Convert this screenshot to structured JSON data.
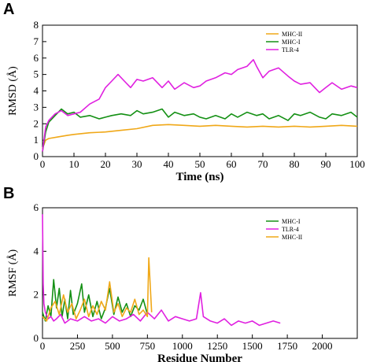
{
  "chart_data": [
    {
      "type": "line",
      "panel_label": "A",
      "xlabel": "Time (ns)",
      "ylabel": "RMSD (Å)",
      "xlim": [
        0,
        100
      ],
      "ylim": [
        0,
        8
      ],
      "xticks": [
        0,
        10,
        20,
        30,
        40,
        50,
        60,
        70,
        80,
        90,
        100
      ],
      "yticks": [
        0,
        1,
        2,
        3,
        4,
        5,
        6,
        7,
        8
      ],
      "grid": false,
      "legend_position": "top-right",
      "series": [
        {
          "name": "MHC-II",
          "color": "#f0a818",
          "x": [
            0,
            1,
            2,
            5,
            8,
            10,
            15,
            20,
            25,
            30,
            35,
            40,
            45,
            50,
            55,
            60,
            65,
            70,
            75,
            80,
            85,
            90,
            95,
            100
          ],
          "y": [
            0.5,
            1.0,
            1.1,
            1.2,
            1.3,
            1.35,
            1.45,
            1.5,
            1.6,
            1.7,
            1.9,
            1.95,
            1.9,
            1.85,
            1.9,
            1.85,
            1.8,
            1.85,
            1.8,
            1.85,
            1.8,
            1.85,
            1.9,
            1.85
          ]
        },
        {
          "name": "MHC-I",
          "color": "#149014",
          "x": [
            0,
            1,
            2,
            4,
            6,
            8,
            10,
            12,
            15,
            18,
            20,
            22,
            25,
            28,
            30,
            32,
            35,
            38,
            40,
            42,
            45,
            48,
            50,
            52,
            55,
            58,
            60,
            62,
            65,
            68,
            70,
            72,
            75,
            78,
            80,
            82,
            85,
            88,
            90,
            92,
            95,
            98,
            100
          ],
          "y": [
            0.3,
            1.5,
            2.1,
            2.5,
            2.9,
            2.6,
            2.7,
            2.4,
            2.5,
            2.3,
            2.4,
            2.5,
            2.6,
            2.5,
            2.8,
            2.6,
            2.7,
            2.9,
            2.4,
            2.7,
            2.5,
            2.6,
            2.4,
            2.3,
            2.5,
            2.3,
            2.6,
            2.4,
            2.7,
            2.5,
            2.6,
            2.3,
            2.5,
            2.2,
            2.6,
            2.5,
            2.7,
            2.4,
            2.3,
            2.6,
            2.5,
            2.7,
            2.4
          ]
        },
        {
          "name": "TLR-4",
          "color": "#e020e0",
          "x": [
            0,
            1,
            2,
            4,
            6,
            8,
            10,
            12,
            15,
            18,
            20,
            22,
            24,
            26,
            28,
            30,
            32,
            35,
            38,
            40,
            42,
            45,
            48,
            50,
            52,
            55,
            58,
            60,
            62,
            65,
            67,
            68,
            70,
            72,
            75,
            78,
            80,
            82,
            85,
            88,
            90,
            92,
            95,
            98,
            100
          ],
          "y": [
            0.3,
            1.8,
            2.2,
            2.6,
            2.8,
            2.5,
            2.6,
            2.7,
            3.2,
            3.5,
            4.2,
            4.6,
            5.0,
            4.6,
            4.2,
            4.7,
            4.6,
            4.8,
            4.2,
            4.6,
            4.1,
            4.5,
            4.2,
            4.3,
            4.6,
            4.8,
            5.1,
            5.0,
            5.3,
            5.5,
            5.9,
            5.5,
            4.8,
            5.2,
            5.4,
            4.9,
            4.6,
            4.4,
            4.5,
            3.9,
            4.2,
            4.5,
            4.1,
            4.3,
            4.2
          ]
        }
      ]
    },
    {
      "type": "line",
      "panel_label": "B",
      "xlabel": "Residue Number",
      "ylabel": "RMSF (Å)",
      "xlim": [
        0,
        2250
      ],
      "ylim": [
        0,
        6
      ],
      "xticks": [
        0,
        250,
        500,
        750,
        1000,
        1250,
        1500,
        1750,
        2000
      ],
      "yticks": [
        0,
        2,
        4,
        6
      ],
      "grid": false,
      "legend_position": "top-right",
      "series": [
        {
          "name": "MHC-I",
          "color": "#149014",
          "x": [
            0,
            20,
            40,
            60,
            80,
            100,
            120,
            140,
            160,
            180,
            200,
            220,
            250,
            280,
            300,
            330,
            360,
            390,
            420,
            450,
            480,
            510,
            540,
            570,
            600,
            630,
            660,
            690,
            720,
            750
          ],
          "y": [
            1.2,
            0.8,
            1.5,
            1.0,
            2.7,
            1.4,
            2.3,
            1.0,
            1.8,
            0.9,
            2.2,
            1.1,
            1.6,
            2.5,
            1.2,
            2.0,
            1.0,
            1.7,
            0.9,
            1.4,
            2.3,
            1.1,
            1.9,
            1.2,
            1.6,
            1.0,
            1.5,
            1.3,
            1.8,
            1.1
          ]
        },
        {
          "name": "TLR-4",
          "color": "#e020e0",
          "x": [
            0,
            5,
            10,
            20,
            40,
            60,
            80,
            100,
            130,
            160,
            200,
            250,
            300,
            350,
            400,
            450,
            500,
            550,
            600,
            650,
            700,
            750,
            800,
            850,
            900,
            950,
            1000,
            1050,
            1100,
            1130,
            1150,
            1200,
            1250,
            1300,
            1350,
            1400,
            1450,
            1500,
            1550,
            1600,
            1650,
            1700
          ],
          "y": [
            5.7,
            2.5,
            1.6,
            1.2,
            0.9,
            1.0,
            0.8,
            0.9,
            1.1,
            0.7,
            0.9,
            0.8,
            1.0,
            0.8,
            0.9,
            0.7,
            1.0,
            0.8,
            0.9,
            1.1,
            0.8,
            1.2,
            0.9,
            1.3,
            0.8,
            1.0,
            0.9,
            0.8,
            0.9,
            2.1,
            1.0,
            0.8,
            0.7,
            0.9,
            0.6,
            0.8,
            0.7,
            0.8,
            0.6,
            0.7,
            0.8,
            0.7
          ]
        },
        {
          "name": "MHC-II",
          "color": "#f0a818",
          "x": [
            0,
            30,
            60,
            90,
            120,
            150,
            180,
            210,
            240,
            270,
            300,
            330,
            360,
            390,
            420,
            450,
            480,
            510,
            540,
            570,
            600,
            630,
            660,
            690,
            720,
            750,
            760,
            780
          ],
          "y": [
            1.0,
            0.8,
            1.4,
            1.7,
            1.1,
            2.0,
            1.2,
            1.6,
            0.9,
            1.3,
            1.8,
            1.0,
            1.5,
            1.1,
            1.7,
            1.3,
            2.6,
            1.2,
            1.6,
            1.0,
            1.4,
            1.2,
            1.8,
            1.1,
            1.3,
            1.0,
            3.7,
            1.2
          ]
        }
      ]
    }
  ]
}
